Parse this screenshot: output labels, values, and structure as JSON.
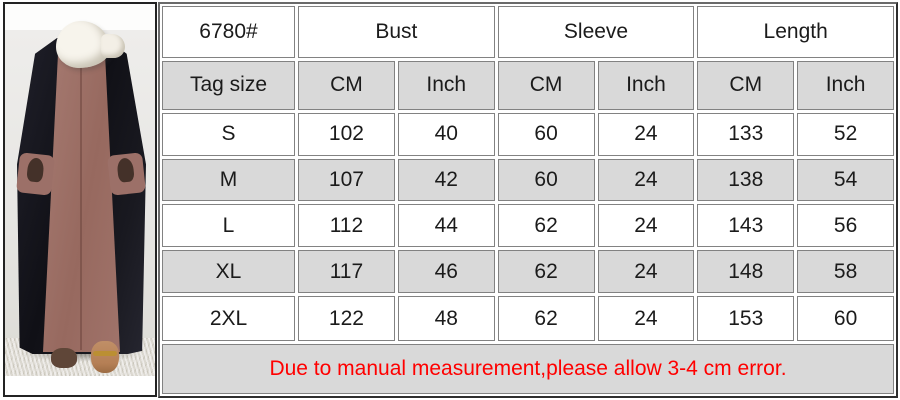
{
  "photo": {
    "description": "model wearing black open abaya over mauve inner dress with white scarf, standing on shaggy carpet",
    "colors": {
      "abaya": "#17171c",
      "inner_dress": "#9c7068",
      "scarf": "#f7f4ec",
      "backdrop": "#e9e8e5",
      "carpet": "#dbd8d0"
    }
  },
  "table": {
    "product_code": "6780#",
    "tag_size_label": "Tag size",
    "groups": [
      {
        "label": "Bust"
      },
      {
        "label": "Sleeve"
      },
      {
        "label": "Length"
      }
    ],
    "unit_headers": [
      "CM",
      "Inch",
      "CM",
      "Inch",
      "CM",
      "Inch"
    ],
    "rows": [
      {
        "size": "S",
        "values": [
          "102",
          "40",
          "60",
          "24",
          "133",
          "52"
        ]
      },
      {
        "size": "M",
        "values": [
          "107",
          "42",
          "60",
          "24",
          "138",
          "54"
        ]
      },
      {
        "size": "L",
        "values": [
          "112",
          "44",
          "62",
          "24",
          "143",
          "56"
        ]
      },
      {
        "size": "XL",
        "values": [
          "117",
          "46",
          "62",
          "24",
          "148",
          "58"
        ]
      },
      {
        "size": "2XL",
        "values": [
          "122",
          "48",
          "62",
          "24",
          "153",
          "60"
        ]
      }
    ],
    "note": "Due to manual measurement,please allow 3-4 cm error.",
    "colors": {
      "note_text": "#ff0000",
      "header_fill": "#d9d9d9",
      "grid_line": "#828282"
    }
  }
}
